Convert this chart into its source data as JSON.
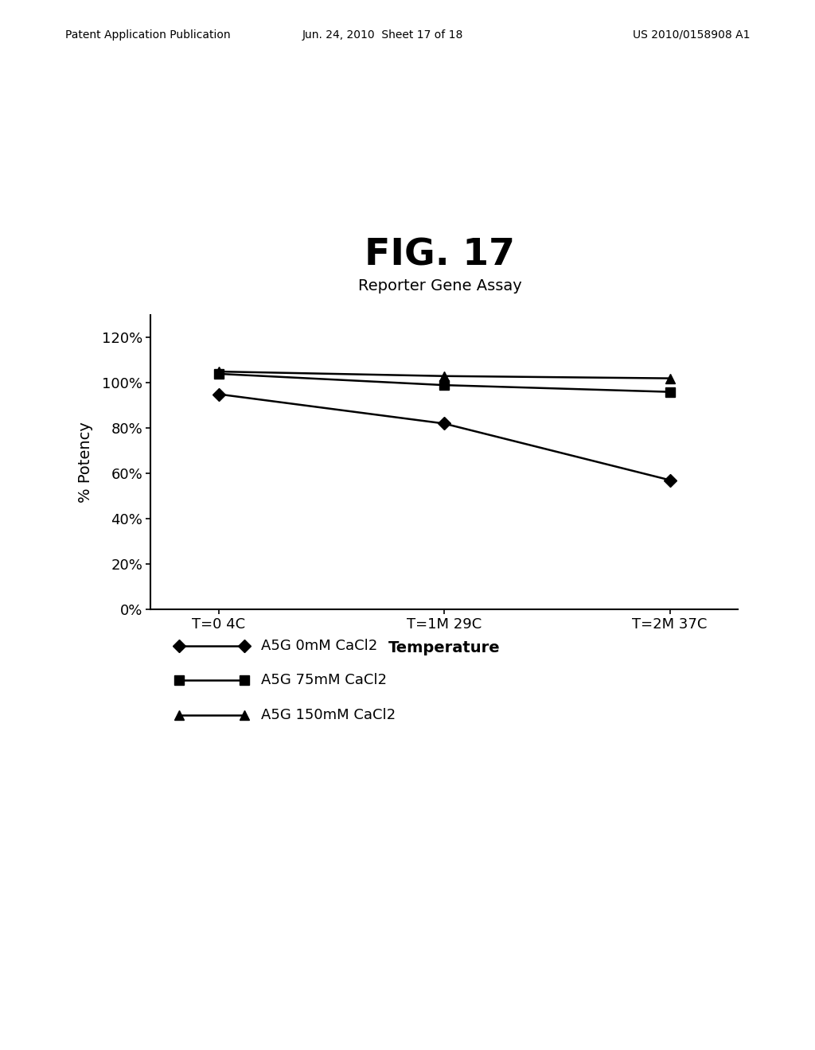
{
  "title": "FIG. 17",
  "subtitle": "Reporter Gene Assay",
  "xlabel": "Temperature",
  "ylabel": "% Potency",
  "x_labels": [
    "T=0 4C",
    "T=1M 29C",
    "T=2M 37C"
  ],
  "x_values": [
    0,
    1,
    2
  ],
  "series": [
    {
      "label": "A5G 0mM CaCl2",
      "values": [
        95,
        82,
        57
      ],
      "color": "#000000",
      "marker": "D",
      "markersize": 8,
      "linewidth": 1.8
    },
    {
      "label": "A5G 75mM CaCl2",
      "values": [
        104,
        99,
        96
      ],
      "color": "#000000",
      "marker": "s",
      "markersize": 8,
      "linewidth": 1.8
    },
    {
      "label": "A5G 150mM CaCl2",
      "values": [
        105,
        103,
        102
      ],
      "color": "#000000",
      "marker": "^",
      "markersize": 9,
      "linewidth": 1.8
    }
  ],
  "ylim": [
    0,
    130
  ],
  "yticks": [
    0,
    20,
    40,
    60,
    80,
    100,
    120
  ],
  "ytick_labels": [
    "0%",
    "20%",
    "40%",
    "60%",
    "80%",
    "100%",
    "120%"
  ],
  "background_color": "#ffffff",
  "header_left": "Patent Application Publication",
  "header_mid": "Jun. 24, 2010  Sheet 17 of 18",
  "header_right": "US 2010/0158908 A1",
  "title_fontsize": 34,
  "subtitle_fontsize": 14,
  "axis_label_fontsize": 14,
  "tick_fontsize": 13,
  "legend_fontsize": 13,
  "header_fontsize": 10
}
